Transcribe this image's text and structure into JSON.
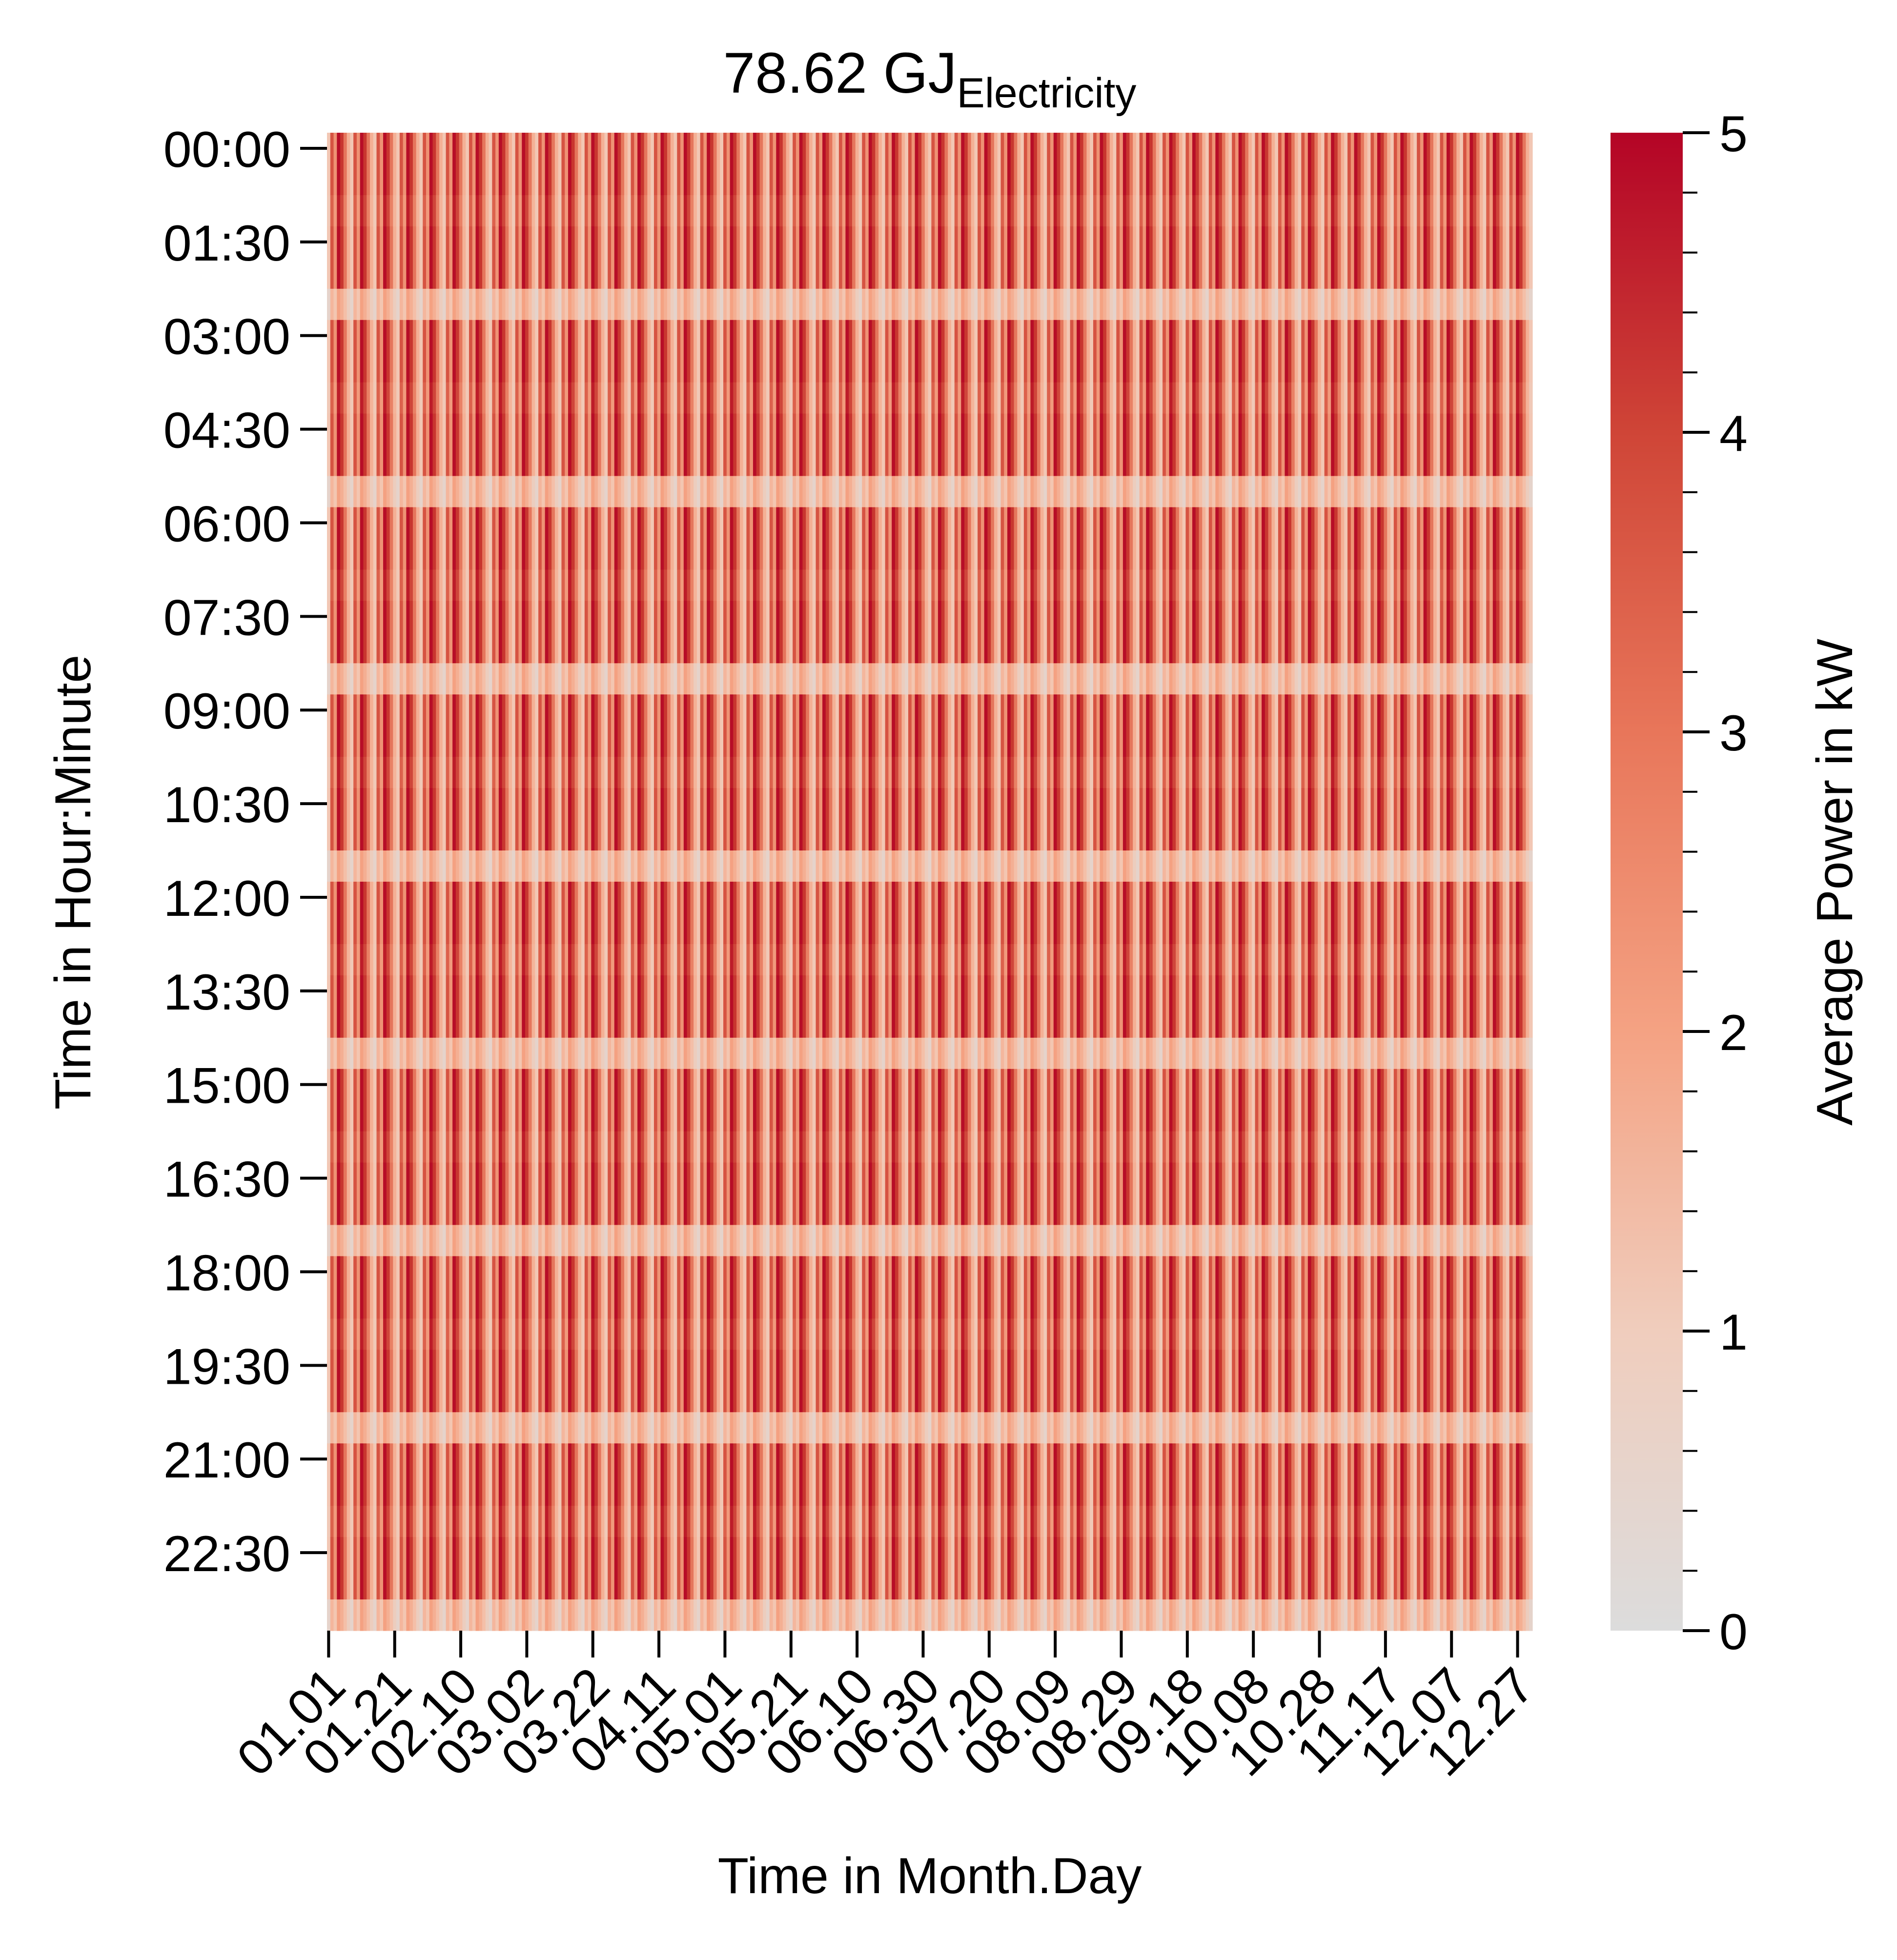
{
  "chart_data": {
    "type": "heatmap",
    "title": {
      "main": "78.62 GJ",
      "subscript": "Electricity"
    },
    "xlabel": "Time in Month.Day",
    "ylabel": "Time in Hour:Minute",
    "x_tick_labels": [
      "01.01",
      "01.21",
      "02.10",
      "03.02",
      "03.22",
      "04.11",
      "05.01",
      "05.21",
      "06.10",
      "06.30",
      "07.20",
      "08.09",
      "08.29",
      "09.18",
      "10.08",
      "10.28",
      "11.17",
      "12.07",
      "12.27"
    ],
    "x_tick_step_days": 20,
    "x_range_days": [
      "01.01",
      "12.31"
    ],
    "y_tick_labels": [
      "00:00",
      "01:30",
      "03:00",
      "04:30",
      "06:00",
      "07:30",
      "09:00",
      "10:30",
      "12:00",
      "13:30",
      "15:00",
      "16:30",
      "18:00",
      "19:30",
      "21:00",
      "22:30"
    ],
    "y_tick_step_minutes": 90,
    "y_range": [
      "00:00",
      "23:59"
    ],
    "colorbar": {
      "label": "Average Power in kW",
      "ticks": [
        0,
        1,
        2,
        3,
        4,
        5
      ],
      "range": [
        0,
        5
      ],
      "colors": [
        "#dcdcdc",
        "#f4c5b0",
        "#f4a283",
        "#e16b52",
        "#c5302b",
        "#b40426"
      ]
    },
    "pattern": {
      "description_values_kw": "repeating 7-day daily profile; 30-minute rows",
      "weekday_profile_kw": [
        0.9,
        3.4,
        2.3,
        4.8,
        3.9,
        2.8,
        1.6
      ],
      "row_modulation": [
        1.0,
        1.0,
        0.93,
        1.0,
        1.0,
        0.42
      ]
    }
  }
}
